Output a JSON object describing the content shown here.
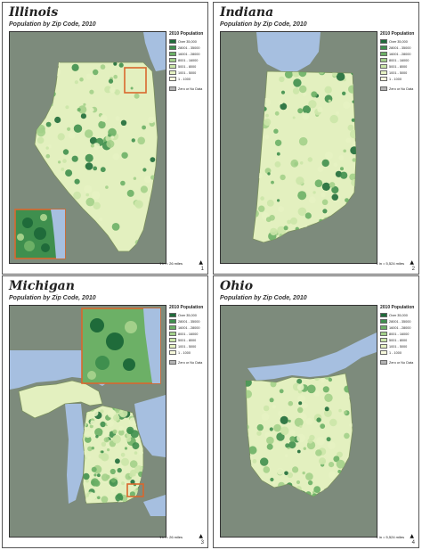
{
  "legend": {
    "title": "2010 Population",
    "classes": [
      {
        "label": "Over 35,000",
        "color": "#1f6b3a"
      },
      {
        "label": "28001 - 35000",
        "color": "#3f8f4e"
      },
      {
        "label": "16001 - 28000",
        "color": "#6cb066"
      },
      {
        "label": "8001 - 16000",
        "color": "#a3d08a"
      },
      {
        "label": "5001 - 8000",
        "color": "#cbe6a9"
      },
      {
        "label": "1001 - 5000",
        "color": "#e6f2c2"
      },
      {
        "label": "1 - 1000",
        "color": "#f7f9dc"
      }
    ],
    "nodata": {
      "label": "Zero or No Data",
      "color": "#b4b4b4"
    }
  },
  "pages": [
    {
      "title": "Illinois",
      "subtitle": "Population by Zip Code, 2010",
      "scale": "1 in = 26 miles",
      "page_number": "1",
      "has_inset": true
    },
    {
      "title": "Indiana",
      "subtitle": "Population by Zip Code, 2010",
      "scale": "1 in = 5,524 miles",
      "page_number": "2",
      "has_inset": false
    },
    {
      "title": "Michigan",
      "subtitle": "Population by Zip Code, 2010",
      "scale": "1 in = 26 miles",
      "page_number": "3",
      "has_inset": true
    },
    {
      "title": "Ohio",
      "subtitle": "Population by Zip Code, 2010",
      "scale": "1 in = 5,524 miles",
      "page_number": "4",
      "has_inset": false
    }
  ],
  "colors": {
    "background_land": "#7d8b7c",
    "water": "#a6bfe0",
    "inset_frame": "#d9682e"
  }
}
